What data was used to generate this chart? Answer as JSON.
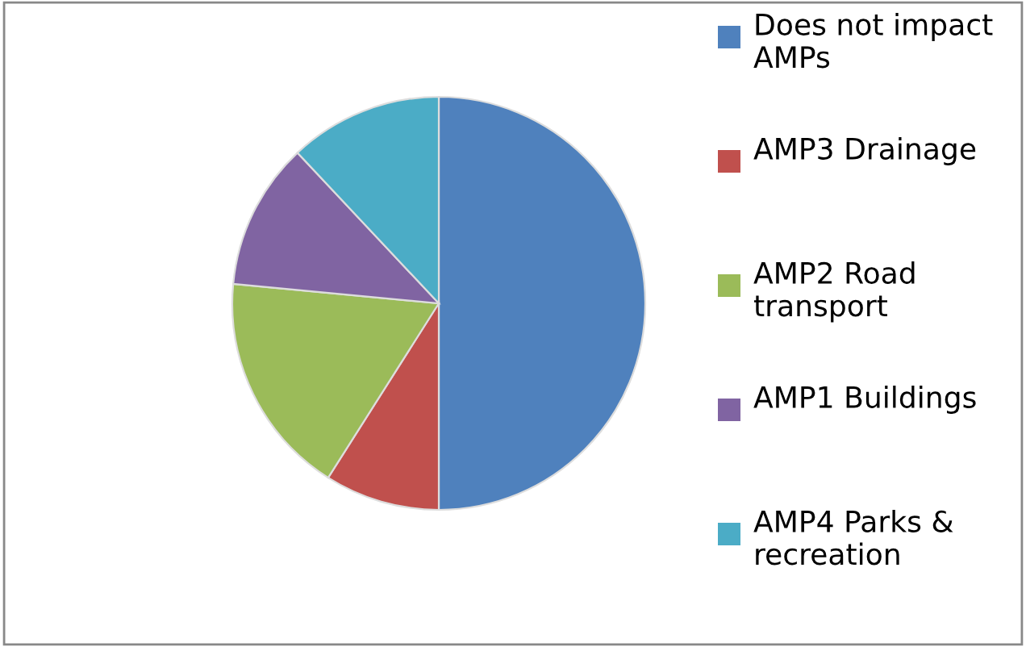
{
  "chart_data": {
    "type": "pie",
    "categories": [
      "Does not impact AMPs",
      "AMP3 Drainage",
      "AMP2 Road transport",
      "AMP1 Buildings",
      "AMP4 Parks & recreation"
    ],
    "values": [
      50,
      9,
      17.5,
      11.5,
      12
    ],
    "colors": [
      "#4f81bd",
      "#c0504d",
      "#9bbb59",
      "#8064a2",
      "#4bacc6"
    ],
    "legend": "right"
  }
}
